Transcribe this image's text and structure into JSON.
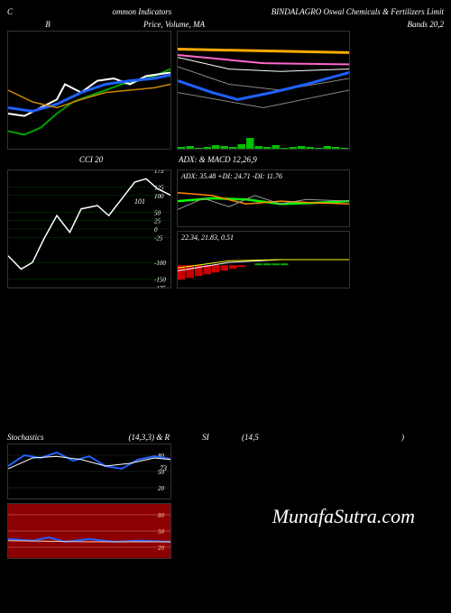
{
  "header": {
    "left": "C",
    "center": "ommon  Indicators",
    "right": "BINDALAGRO Oswal Chemicals & Fertilizers Limit"
  },
  "subheader": {
    "b_label": "B",
    "price_label": "Price,  Volume,  MA",
    "bands_label": "Bands 20,2"
  },
  "box_b": {
    "type": "line",
    "background": "#000000",
    "xlim": [
      0,
      100
    ],
    "ylim": [
      0,
      100
    ],
    "series": [
      {
        "color": "#00a000",
        "width": 2,
        "pts": [
          [
            0,
            15
          ],
          [
            10,
            12
          ],
          [
            20,
            18
          ],
          [
            30,
            30
          ],
          [
            40,
            40
          ],
          [
            50,
            45
          ],
          [
            60,
            50
          ],
          [
            70,
            55
          ],
          [
            80,
            58
          ],
          [
            90,
            62
          ],
          [
            100,
            68
          ]
        ]
      },
      {
        "color": "#ffffff",
        "width": 2,
        "pts": [
          [
            0,
            30
          ],
          [
            10,
            28
          ],
          [
            20,
            35
          ],
          [
            30,
            42
          ],
          [
            35,
            55
          ],
          [
            45,
            48
          ],
          [
            55,
            58
          ],
          [
            65,
            60
          ],
          [
            75,
            55
          ],
          [
            85,
            62
          ],
          [
            100,
            65
          ]
        ]
      },
      {
        "color": "#2060ff",
        "width": 3,
        "pts": [
          [
            0,
            35
          ],
          [
            15,
            32
          ],
          [
            30,
            38
          ],
          [
            45,
            48
          ],
          [
            60,
            55
          ],
          [
            75,
            58
          ],
          [
            90,
            60
          ],
          [
            100,
            63
          ]
        ]
      },
      {
        "color": "#cc8800",
        "width": 1.5,
        "pts": [
          [
            0,
            50
          ],
          [
            15,
            40
          ],
          [
            30,
            35
          ],
          [
            45,
            42
          ],
          [
            60,
            48
          ],
          [
            75,
            50
          ],
          [
            90,
            52
          ],
          [
            100,
            55
          ]
        ]
      }
    ]
  },
  "box_price": {
    "type": "line",
    "background": "#000000",
    "xlim": [
      0,
      100
    ],
    "ylim": [
      0,
      100
    ],
    "series": [
      {
        "color": "#ffaa00",
        "width": 3,
        "pts": [
          [
            0,
            85
          ],
          [
            100,
            82
          ]
        ]
      },
      {
        "color": "#ff66cc",
        "width": 2,
        "pts": [
          [
            0,
            80
          ],
          [
            50,
            73
          ],
          [
            100,
            72
          ]
        ]
      },
      {
        "color": "#ffffff",
        "width": 1,
        "pts": [
          [
            0,
            78
          ],
          [
            30,
            68
          ],
          [
            60,
            66
          ],
          [
            100,
            68
          ]
        ]
      },
      {
        "color": "#888888",
        "width": 1,
        "pts": [
          [
            0,
            70
          ],
          [
            30,
            55
          ],
          [
            60,
            50
          ],
          [
            100,
            60
          ]
        ]
      },
      {
        "color": "#2060ff",
        "width": 3,
        "pts": [
          [
            0,
            58
          ],
          [
            20,
            48
          ],
          [
            35,
            42
          ],
          [
            55,
            48
          ],
          [
            75,
            55
          ],
          [
            100,
            65
          ]
        ]
      },
      {
        "color": "#888888",
        "width": 1,
        "pts": [
          [
            0,
            48
          ],
          [
            50,
            35
          ],
          [
            100,
            50
          ]
        ]
      }
    ],
    "volume": {
      "color": "#00c000",
      "heights": [
        2,
        3,
        1,
        2,
        4,
        3,
        2,
        5,
        12,
        3,
        2,
        4,
        1,
        2,
        3,
        2,
        1,
        3,
        2,
        1
      ]
    }
  },
  "box_cci": {
    "type": "line",
    "title": "CCI 20",
    "background": "#000000",
    "ylim": [
      -175,
      175
    ],
    "gridlines": [
      175,
      125,
      100,
      50,
      25,
      0,
      -25,
      -100,
      -150,
      -175
    ],
    "grid_color": "#004400",
    "label_color": "#ffffff",
    "value_label": "101",
    "series": [
      {
        "color": "#ffffff",
        "width": 1.5,
        "pts": [
          [
            0,
            -80
          ],
          [
            8,
            -120
          ],
          [
            15,
            -100
          ],
          [
            22,
            -30
          ],
          [
            30,
            40
          ],
          [
            38,
            -10
          ],
          [
            45,
            60
          ],
          [
            55,
            70
          ],
          [
            62,
            40
          ],
          [
            70,
            90
          ],
          [
            78,
            140
          ],
          [
            85,
            150
          ],
          [
            92,
            120
          ],
          [
            100,
            101
          ]
        ]
      }
    ]
  },
  "box_adx": {
    "type": "line",
    "title": "ADX:  & MACD 12,26,9",
    "text": "ADX: 35.48   +DI: 24.71 -DI: 11.76",
    "background": "#000000",
    "series": [
      {
        "color": "#00ff00",
        "width": 2.5,
        "pts": [
          [
            0,
            45
          ],
          [
            20,
            50
          ],
          [
            40,
            48
          ],
          [
            60,
            40
          ],
          [
            80,
            42
          ],
          [
            100,
            45
          ]
        ]
      },
      {
        "color": "#ff8800",
        "width": 1.5,
        "pts": [
          [
            0,
            60
          ],
          [
            20,
            55
          ],
          [
            40,
            40
          ],
          [
            60,
            45
          ],
          [
            80,
            42
          ],
          [
            100,
            40
          ]
        ]
      },
      {
        "color": "#999999",
        "width": 1,
        "pts": [
          [
            0,
            30
          ],
          [
            15,
            50
          ],
          [
            30,
            35
          ],
          [
            45,
            55
          ],
          [
            60,
            40
          ],
          [
            75,
            48
          ],
          [
            100,
            45
          ]
        ]
      }
    ]
  },
  "box_macd": {
    "type": "macd",
    "text": "22.34,  21.83,  0.51",
    "background": "#000000",
    "histogram": {
      "color_pos": "#00aa00",
      "color_neg": "#cc0000",
      "values": [
        -8,
        -7,
        -6,
        -5,
        -4,
        -3,
        -2,
        -1,
        0,
        1,
        1,
        1,
        1,
        0,
        0,
        0,
        0,
        0,
        0,
        0
      ]
    },
    "series": [
      {
        "color": "#ffffff",
        "width": 1,
        "pts": [
          [
            0,
            30
          ],
          [
            30,
            45
          ],
          [
            60,
            50
          ],
          [
            100,
            50
          ]
        ]
      },
      {
        "color": "#ffff00",
        "width": 1,
        "pts": [
          [
            0,
            35
          ],
          [
            30,
            48
          ],
          [
            60,
            50
          ],
          [
            100,
            50
          ]
        ]
      }
    ]
  },
  "stoch_header": {
    "left": "Stochastics",
    "mid": "(14,3,3) & R",
    "right_label": "SI",
    "params": "(14,5",
    "close": ")"
  },
  "box_stoch": {
    "background": "#000000",
    "ylim": [
      0,
      100
    ],
    "gridlines": [
      80,
      50,
      20
    ],
    "value": "73",
    "series": [
      {
        "color": "#2060ff",
        "width": 2,
        "pts": [
          [
            0,
            60
          ],
          [
            10,
            80
          ],
          [
            20,
            75
          ],
          [
            30,
            85
          ],
          [
            40,
            70
          ],
          [
            50,
            78
          ],
          [
            60,
            60
          ],
          [
            70,
            55
          ],
          [
            80,
            72
          ],
          [
            90,
            78
          ],
          [
            100,
            73
          ]
        ]
      },
      {
        "color": "#ffffff",
        "width": 1,
        "pts": [
          [
            0,
            55
          ],
          [
            15,
            75
          ],
          [
            30,
            78
          ],
          [
            45,
            72
          ],
          [
            60,
            60
          ],
          [
            75,
            65
          ],
          [
            90,
            75
          ],
          [
            100,
            72
          ]
        ]
      }
    ]
  },
  "box_rsi": {
    "background": "#8b0000",
    "ylim": [
      0,
      100
    ],
    "gridlines": [
      80,
      50,
      20
    ],
    "grid_color": "#cc8866",
    "value": "30-ish",
    "series": [
      {
        "color": "#2060ff",
        "width": 2,
        "pts": [
          [
            0,
            35
          ],
          [
            15,
            32
          ],
          [
            25,
            38
          ],
          [
            35,
            30
          ],
          [
            50,
            35
          ],
          [
            65,
            30
          ],
          [
            80,
            32
          ],
          [
            100,
            30
          ]
        ]
      },
      {
        "color": "#ffccaa",
        "width": 1,
        "pts": [
          [
            0,
            32
          ],
          [
            50,
            30
          ],
          [
            100,
            30
          ]
        ]
      }
    ]
  },
  "watermark": "MunafaSutra.com"
}
